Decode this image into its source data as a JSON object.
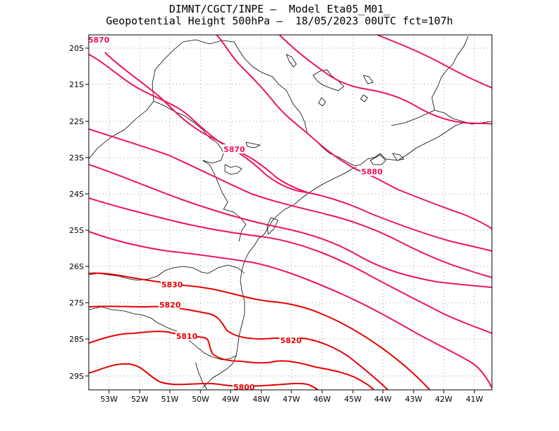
{
  "title_line1": "DIMNT/CGCT/INPE –  Model Eta05_M01_",
  "title_line2": "Geopotential Height 500hPa –  18/05/2023 00UTC fct=107h",
  "lat_labels": [
    "20S",
    "21S",
    "22S",
    "23S",
    "24S",
    "25S",
    "26S",
    "27S",
    "28S",
    "29S"
  ],
  "lon_labels": [
    "53W",
    "52W",
    "51W",
    "50W",
    "49W",
    "48W",
    "47W",
    "46W",
    "45W",
    "44W",
    "43W",
    "42W",
    "41W"
  ],
  "contour_labels": [
    "5870",
    "5870",
    "5880",
    "5830",
    "5820",
    "5810",
    "5820",
    "5800"
  ],
  "colors": {
    "red_contour": "#e60000",
    "magenta_contour": "#f0145a",
    "coast": "#000000",
    "grid": "#9a9a9a"
  }
}
